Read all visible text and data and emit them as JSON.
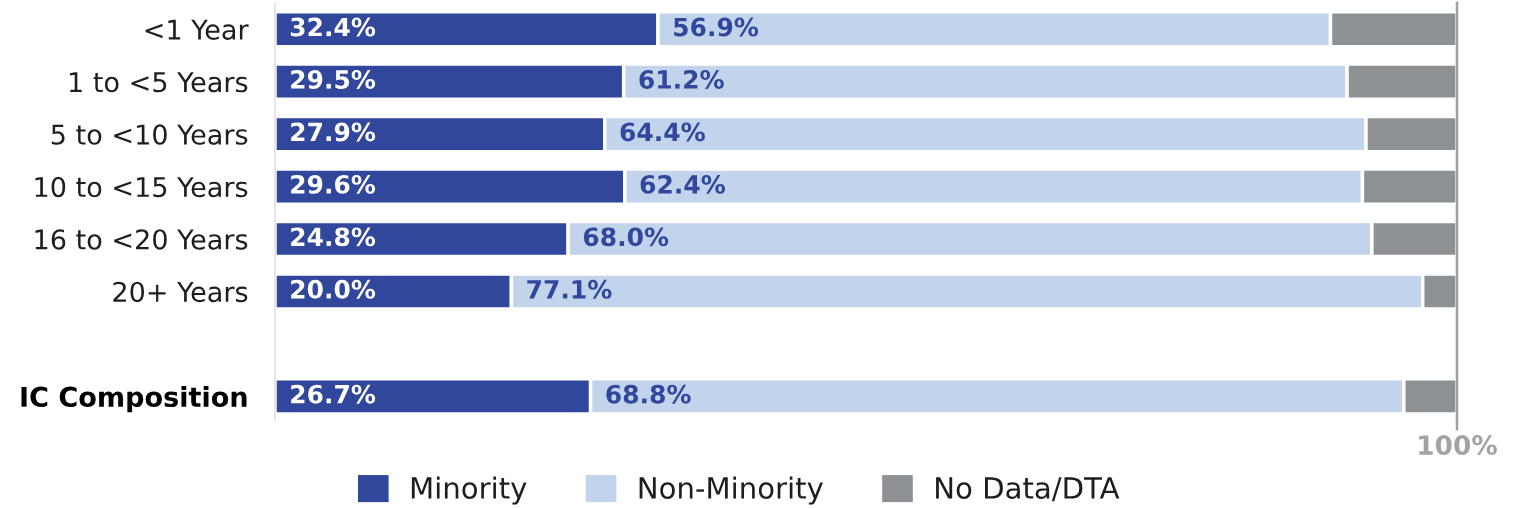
{
  "chart_data": {
    "type": "bar",
    "orientation": "horizontal",
    "stacked": true,
    "categories": [
      "<1 Year",
      "1 to <5 Years",
      "5 to <10 Years",
      "10 to <15 Years",
      "16 to <20 Years",
      "20+ Years",
      null,
      "IC Composition"
    ],
    "series": [
      {
        "name": "Minority",
        "color": "#30479c",
        "values": [
          32.4,
          29.5,
          27.9,
          29.6,
          24.8,
          20.0,
          null,
          26.7
        ],
        "value_labels": [
          "32.4%",
          "29.5%",
          "27.9%",
          "29.6%",
          "24.8%",
          "20.0%",
          null,
          "26.7%"
        ]
      },
      {
        "name": "Non-Minority",
        "color": "#c1d4ec",
        "values": [
          56.9,
          61.2,
          64.4,
          62.4,
          68.0,
          77.1,
          null,
          68.8
        ],
        "value_labels": [
          "56.9%",
          "61.2%",
          "64.4%",
          "62.4%",
          "68.0%",
          "77.1%",
          null,
          "68.8%"
        ]
      },
      {
        "name": "No Data/DTA",
        "color": "#8e9194",
        "values": [
          10.7,
          9.3,
          7.7,
          8.0,
          7.2,
          2.9,
          null,
          4.5
        ]
      }
    ],
    "xlim": [
      0,
      100
    ],
    "xticks": [
      {
        "value": 100,
        "label": "100%"
      }
    ],
    "legend": "bottom"
  }
}
